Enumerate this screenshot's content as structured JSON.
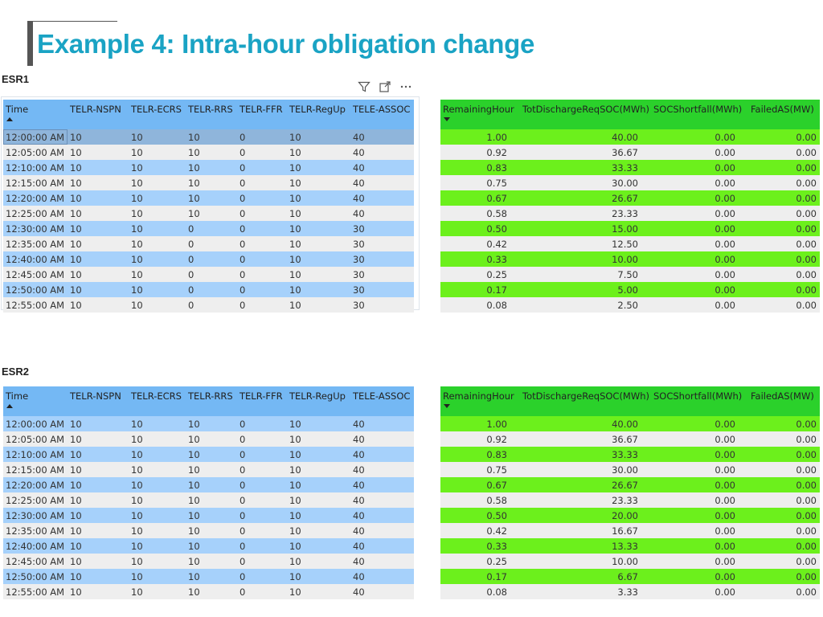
{
  "page": {
    "title": "Example 4: Intra-hour obligation change"
  },
  "columns_left": [
    "Time",
    "TELR-NSPN",
    "TELR-ECRS",
    "TELR-RRS",
    "TELR-FFR",
    "TELR-RegUp",
    "TELE-ASSOC"
  ],
  "columns_right": [
    "RemainingHour",
    "TotDischargeReqSOC(MWh)",
    "SOCShortfall(MWh)",
    "FailedAS(MW)"
  ],
  "toolbar": {
    "icons": [
      "filter-icon",
      "focus-mode-icon",
      "more-options-icon"
    ]
  },
  "esr1": {
    "label": "ESR1",
    "left_rows": [
      [
        "12:00:00 AM",
        "10",
        "10",
        "10",
        "0",
        "10",
        "40"
      ],
      [
        "12:05:00 AM",
        "10",
        "10",
        "10",
        "0",
        "10",
        "40"
      ],
      [
        "12:10:00 AM",
        "10",
        "10",
        "10",
        "0",
        "10",
        "40"
      ],
      [
        "12:15:00 AM",
        "10",
        "10",
        "10",
        "0",
        "10",
        "40"
      ],
      [
        "12:20:00 AM",
        "10",
        "10",
        "10",
        "0",
        "10",
        "40"
      ],
      [
        "12:25:00 AM",
        "10",
        "10",
        "10",
        "0",
        "10",
        "40"
      ],
      [
        "12:30:00 AM",
        "10",
        "10",
        "0",
        "0",
        "10",
        "30"
      ],
      [
        "12:35:00 AM",
        "10",
        "10",
        "0",
        "0",
        "10",
        "30"
      ],
      [
        "12:40:00 AM",
        "10",
        "10",
        "0",
        "0",
        "10",
        "30"
      ],
      [
        "12:45:00 AM",
        "10",
        "10",
        "0",
        "0",
        "10",
        "30"
      ],
      [
        "12:50:00 AM",
        "10",
        "10",
        "0",
        "0",
        "10",
        "30"
      ],
      [
        "12:55:00 AM",
        "10",
        "10",
        "0",
        "0",
        "10",
        "30"
      ]
    ],
    "right_rows": [
      [
        "1.00",
        "40.00",
        "0.00",
        "0.00"
      ],
      [
        "0.92",
        "36.67",
        "0.00",
        "0.00"
      ],
      [
        "0.83",
        "33.33",
        "0.00",
        "0.00"
      ],
      [
        "0.75",
        "30.00",
        "0.00",
        "0.00"
      ],
      [
        "0.67",
        "26.67",
        "0.00",
        "0.00"
      ],
      [
        "0.58",
        "23.33",
        "0.00",
        "0.00"
      ],
      [
        "0.50",
        "15.00",
        "0.00",
        "0.00"
      ],
      [
        "0.42",
        "12.50",
        "0.00",
        "0.00"
      ],
      [
        "0.33",
        "10.00",
        "0.00",
        "0.00"
      ],
      [
        "0.25",
        "7.50",
        "0.00",
        "0.00"
      ],
      [
        "0.17",
        "5.00",
        "0.00",
        "0.00"
      ],
      [
        "0.08",
        "2.50",
        "0.00",
        "0.00"
      ]
    ]
  },
  "esr2": {
    "label": "ESR2",
    "left_rows": [
      [
        "12:00:00 AM",
        "10",
        "10",
        "10",
        "0",
        "10",
        "40"
      ],
      [
        "12:05:00 AM",
        "10",
        "10",
        "10",
        "0",
        "10",
        "40"
      ],
      [
        "12:10:00 AM",
        "10",
        "10",
        "10",
        "0",
        "10",
        "40"
      ],
      [
        "12:15:00 AM",
        "10",
        "10",
        "10",
        "0",
        "10",
        "40"
      ],
      [
        "12:20:00 AM",
        "10",
        "10",
        "10",
        "0",
        "10",
        "40"
      ],
      [
        "12:25:00 AM",
        "10",
        "10",
        "10",
        "0",
        "10",
        "40"
      ],
      [
        "12:30:00 AM",
        "10",
        "10",
        "10",
        "0",
        "10",
        "40"
      ],
      [
        "12:35:00 AM",
        "10",
        "10",
        "10",
        "0",
        "10",
        "40"
      ],
      [
        "12:40:00 AM",
        "10",
        "10",
        "10",
        "0",
        "10",
        "40"
      ],
      [
        "12:45:00 AM",
        "10",
        "10",
        "10",
        "0",
        "10",
        "40"
      ],
      [
        "12:50:00 AM",
        "10",
        "10",
        "10",
        "0",
        "10",
        "40"
      ],
      [
        "12:55:00 AM",
        "10",
        "10",
        "10",
        "0",
        "10",
        "40"
      ]
    ],
    "right_rows": [
      [
        "1.00",
        "40.00",
        "0.00",
        "0.00"
      ],
      [
        "0.92",
        "36.67",
        "0.00",
        "0.00"
      ],
      [
        "0.83",
        "33.33",
        "0.00",
        "0.00"
      ],
      [
        "0.75",
        "30.00",
        "0.00",
        "0.00"
      ],
      [
        "0.67",
        "26.67",
        "0.00",
        "0.00"
      ],
      [
        "0.58",
        "23.33",
        "0.00",
        "0.00"
      ],
      [
        "0.50",
        "20.00",
        "0.00",
        "0.00"
      ],
      [
        "0.42",
        "16.67",
        "0.00",
        "0.00"
      ],
      [
        "0.33",
        "13.33",
        "0.00",
        "0.00"
      ],
      [
        "0.25",
        "10.00",
        "0.00",
        "0.00"
      ],
      [
        "0.17",
        "6.67",
        "0.00",
        "0.00"
      ],
      [
        "0.08",
        "3.33",
        "0.00",
        "0.00"
      ]
    ]
  }
}
